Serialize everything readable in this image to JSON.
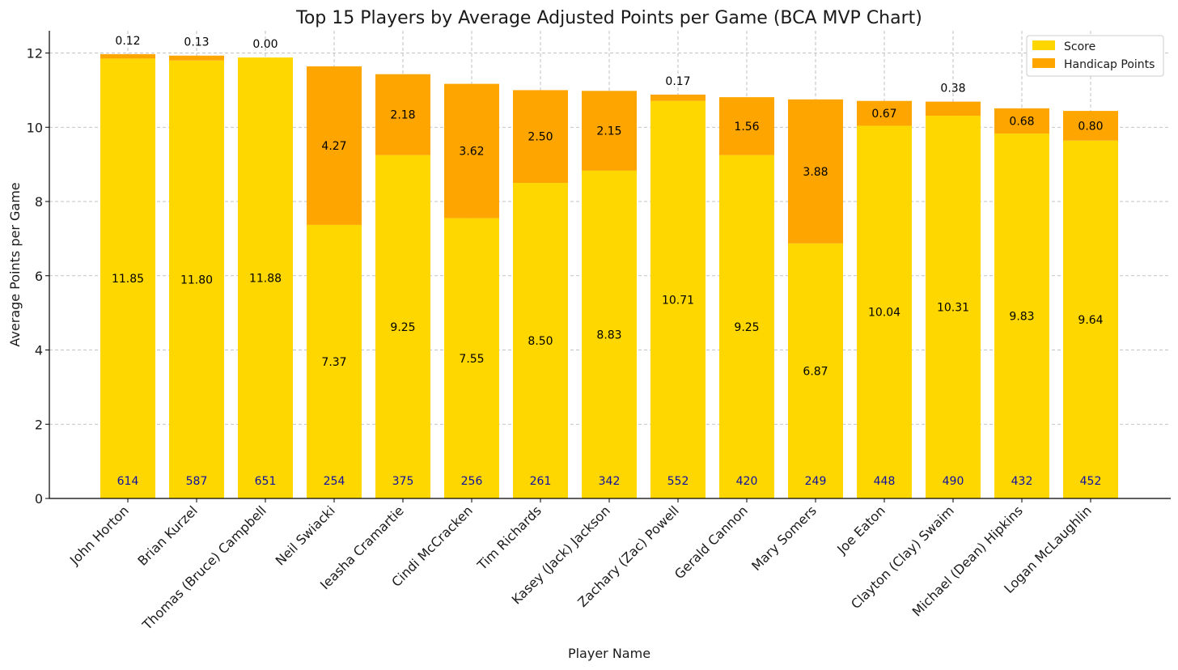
{
  "chart_data": {
    "type": "bar",
    "stacked": true,
    "title": "Top 15 Players by Average Adjusted Points per Game (BCA MVP Chart)",
    "xlabel": "Player Name",
    "ylabel": "Average Points per Game",
    "ylim": [
      0,
      12.6
    ],
    "yticks": [
      0,
      2,
      4,
      6,
      8,
      10,
      12
    ],
    "grid": true,
    "legend_position": "top-right",
    "categories": [
      "John Horton",
      "Brian Kurzel",
      "Thomas (Bruce) Campbell",
      "Neil Swiacki",
      "Ieasha Cramartie",
      "Cindi McCracken",
      "Tim Richards",
      "Kasey (Jack) Jackson",
      "Zachary (Zac) Powell",
      "Gerald Cannon",
      "Mary Somers",
      "Joe Eaton",
      "Clayton (Clay) Swaim",
      "Michael (Dean) Hipkins",
      "Logan McLaughlin"
    ],
    "series": [
      {
        "name": "Score",
        "color": "#FFD700",
        "values": [
          11.85,
          11.8,
          11.88,
          7.37,
          9.25,
          7.55,
          8.5,
          8.83,
          10.71,
          9.25,
          6.87,
          10.04,
          10.31,
          9.83,
          9.64
        ],
        "labels": [
          "11.85",
          "11.80",
          "11.88",
          "7.37",
          "9.25",
          "7.55",
          "8.50",
          "8.83",
          "10.71",
          "9.25",
          "6.87",
          "10.04",
          "10.31",
          "9.83",
          "9.64"
        ]
      },
      {
        "name": "Handicap Points",
        "color": "#FFA500",
        "values": [
          0.12,
          0.13,
          0.0,
          4.27,
          2.18,
          3.62,
          2.5,
          2.15,
          0.17,
          1.56,
          3.88,
          0.67,
          0.38,
          0.68,
          0.8
        ],
        "labels": [
          "0.12",
          "0.13",
          "0.00",
          "4.27",
          "2.18",
          "3.62",
          "2.50",
          "2.15",
          "0.17",
          "1.56",
          "3.88",
          "0.67",
          "0.38",
          "0.68",
          "0.80"
        ]
      }
    ],
    "games_played": {
      "color": "#1010a0",
      "values": [
        "614",
        "587",
        "651",
        "254",
        "375",
        "256",
        "261",
        "342",
        "552",
        "420",
        "249",
        "448",
        "490",
        "432",
        "452"
      ]
    }
  }
}
